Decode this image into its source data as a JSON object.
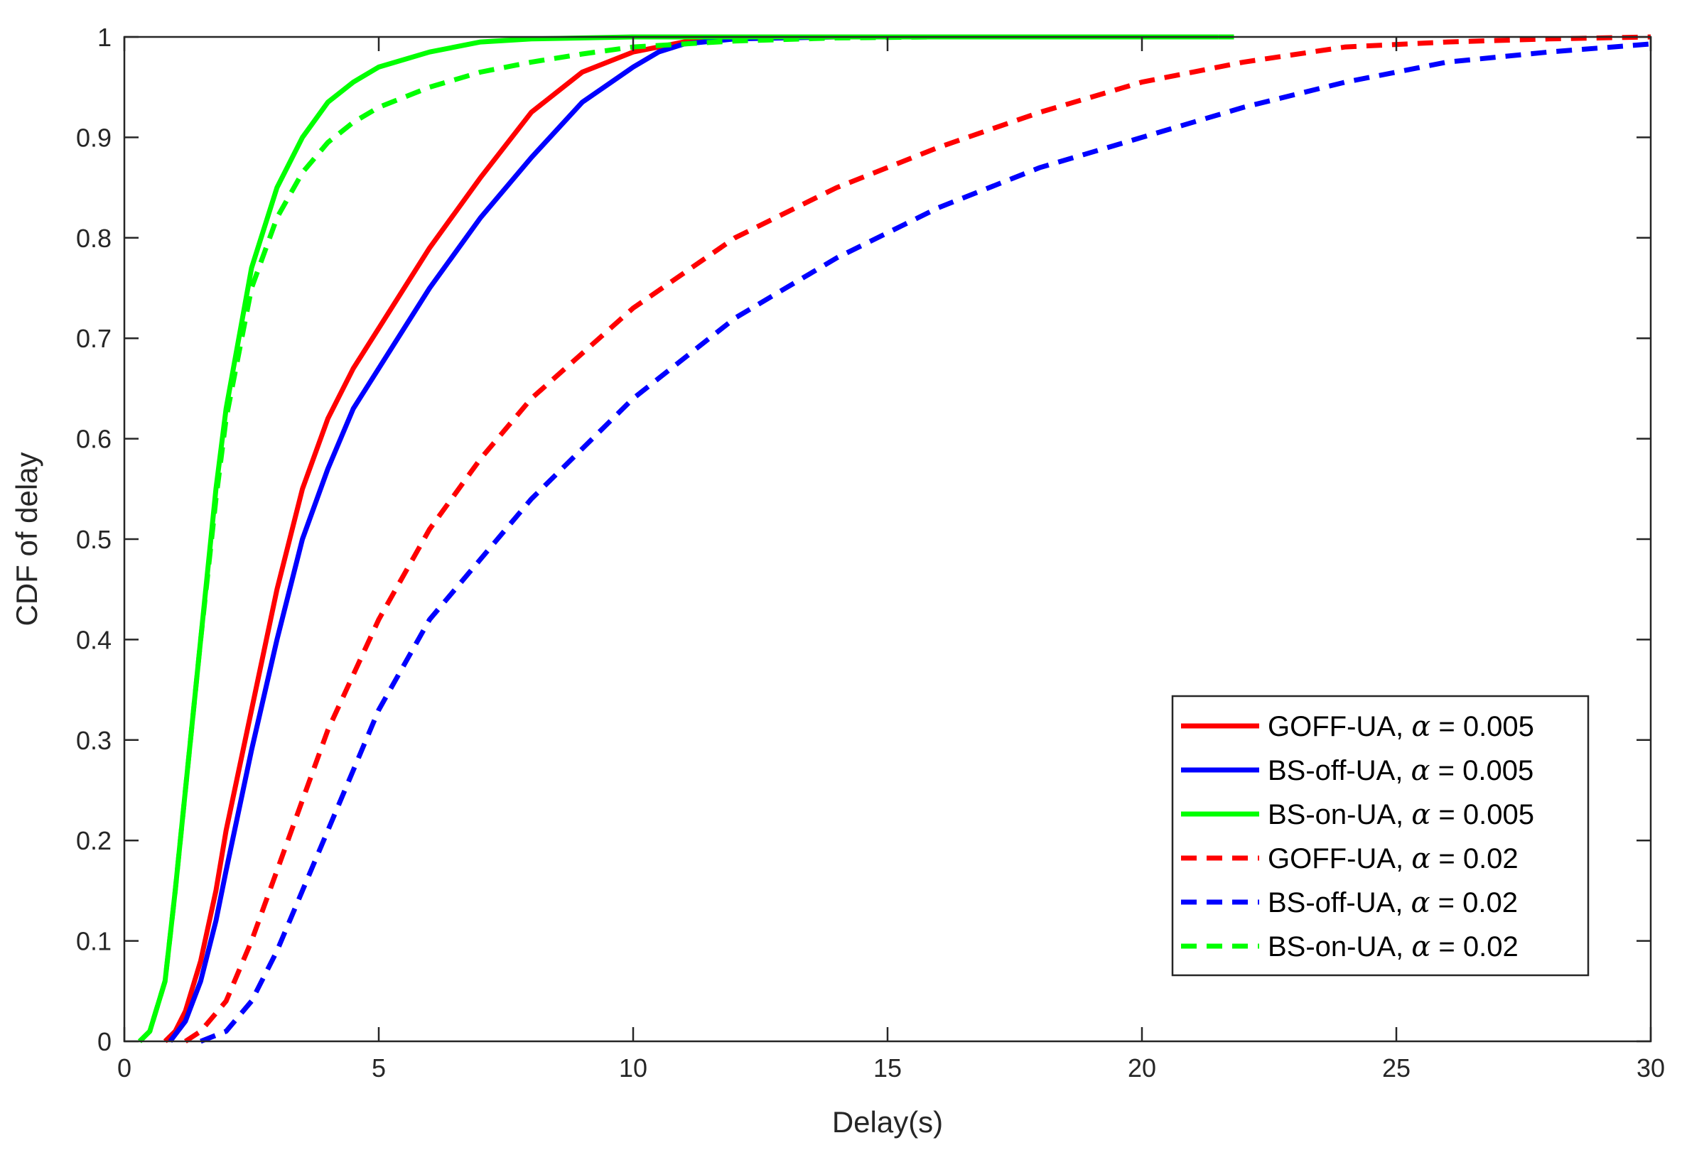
{
  "chart_data": {
    "type": "line",
    "title": "",
    "xlabel": "Delay(s)",
    "ylabel": "CDF of delay",
    "xlim": [
      0,
      30
    ],
    "ylim": [
      0,
      1
    ],
    "xticks": [
      0,
      5,
      10,
      15,
      20,
      25,
      30
    ],
    "xtick_labels": [
      "0",
      "5",
      "10",
      "15",
      "20",
      "25",
      "30"
    ],
    "yticks": [
      0,
      0.1,
      0.2,
      0.3,
      0.4,
      0.5,
      0.6,
      0.7,
      0.8,
      0.9,
      1
    ],
    "ytick_labels": [
      "0",
      "0.1",
      "0.2",
      "0.3",
      "0.4",
      "0.5",
      "0.6",
      "0.7",
      "0.8",
      "0.9",
      "1"
    ],
    "grid": false,
    "legend_position": "bottom-right",
    "alpha_symbol": "α",
    "series": [
      {
        "name": "GOFF-UA, α = 0.005",
        "label_prefix": "GOFF-UA, ",
        "label_suffix": " = 0.005",
        "color": "#ff0000",
        "dashed": false,
        "x": [
          0.8,
          1.0,
          1.2,
          1.5,
          1.8,
          2.0,
          2.5,
          3.0,
          3.5,
          4.0,
          4.5,
          5.0,
          6.0,
          7.0,
          8.0,
          9.0,
          10.0,
          11.0,
          12.0,
          14.0
        ],
        "y": [
          0.0,
          0.01,
          0.03,
          0.08,
          0.15,
          0.21,
          0.33,
          0.45,
          0.55,
          0.62,
          0.67,
          0.71,
          0.79,
          0.86,
          0.925,
          0.965,
          0.985,
          0.995,
          0.999,
          1.0
        ]
      },
      {
        "name": "BS-off-UA, α = 0.005",
        "label_prefix": "BS-off-UA, ",
        "label_suffix": " = 0.005",
        "color": "#0000ff",
        "dashed": false,
        "x": [
          0.9,
          1.2,
          1.5,
          1.8,
          2.0,
          2.5,
          3.0,
          3.5,
          4.0,
          4.5,
          5.0,
          6.0,
          7.0,
          8.0,
          9.0,
          10.0,
          10.5,
          11.0,
          12.0,
          14.0
        ],
        "y": [
          0.0,
          0.02,
          0.06,
          0.12,
          0.17,
          0.29,
          0.4,
          0.5,
          0.57,
          0.63,
          0.67,
          0.75,
          0.82,
          0.88,
          0.935,
          0.97,
          0.985,
          0.993,
          0.998,
          1.0
        ]
      },
      {
        "name": "BS-on-UA, α = 0.005",
        "label_prefix": "BS-on-UA, ",
        "label_suffix": " = 0.005",
        "color": "#00ff00",
        "dashed": false,
        "x": [
          0.3,
          0.5,
          0.8,
          1.0,
          1.2,
          1.5,
          1.8,
          2.0,
          2.5,
          3.0,
          3.5,
          4.0,
          4.5,
          5.0,
          6.0,
          7.0,
          8.0,
          10.0,
          14.0,
          21.5
        ],
        "y": [
          0.0,
          0.01,
          0.06,
          0.15,
          0.25,
          0.4,
          0.55,
          0.63,
          0.77,
          0.85,
          0.9,
          0.935,
          0.955,
          0.97,
          0.985,
          0.995,
          0.998,
          1.0,
          1.0,
          1.0
        ]
      },
      {
        "name": "GOFF-UA, α = 0.02",
        "label_prefix": "GOFF-UA, ",
        "label_suffix": " = 0.02",
        "color": "#ff0000",
        "dashed": true,
        "x": [
          1.2,
          1.5,
          2.0,
          2.5,
          3.0,
          3.5,
          4.0,
          5.0,
          6.0,
          7.0,
          8.0,
          10.0,
          12.0,
          14.0,
          16.0,
          18.0,
          20.0,
          22.0,
          24.0,
          26.0,
          28.0,
          30.0
        ],
        "y": [
          0.0,
          0.01,
          0.04,
          0.1,
          0.17,
          0.24,
          0.31,
          0.42,
          0.51,
          0.58,
          0.64,
          0.73,
          0.8,
          0.85,
          0.89,
          0.925,
          0.955,
          0.975,
          0.99,
          0.995,
          0.998,
          1.0
        ]
      },
      {
        "name": "BS-off-UA, α = 0.02",
        "label_prefix": "BS-off-UA, ",
        "label_suffix": " = 0.02",
        "color": "#0000ff",
        "dashed": true,
        "x": [
          1.5,
          2.0,
          2.5,
          3.0,
          3.5,
          4.0,
          5.0,
          6.0,
          7.0,
          8.0,
          10.0,
          12.0,
          14.0,
          16.0,
          18.0,
          20.0,
          22.0,
          24.0,
          26.0,
          28.0,
          30.0
        ],
        "y": [
          0.0,
          0.01,
          0.04,
          0.09,
          0.15,
          0.21,
          0.33,
          0.42,
          0.48,
          0.54,
          0.64,
          0.72,
          0.78,
          0.83,
          0.87,
          0.9,
          0.93,
          0.955,
          0.975,
          0.985,
          0.993
        ]
      },
      {
        "name": "BS-on-UA, α = 0.02",
        "label_prefix": "BS-on-UA, ",
        "label_suffix": " = 0.02",
        "color": "#00ff00",
        "dashed": true,
        "x": [
          0.3,
          0.5,
          0.8,
          1.0,
          1.2,
          1.5,
          1.8,
          2.0,
          2.5,
          3.0,
          3.5,
          4.0,
          4.5,
          5.0,
          6.0,
          7.0,
          8.0,
          9.0,
          10.0,
          12.0,
          14.0,
          16.0,
          22.0
        ],
        "y": [
          0.0,
          0.01,
          0.06,
          0.15,
          0.25,
          0.4,
          0.54,
          0.62,
          0.75,
          0.82,
          0.865,
          0.895,
          0.915,
          0.93,
          0.95,
          0.965,
          0.975,
          0.983,
          0.99,
          0.996,
          0.999,
          1.0,
          1.0
        ]
      }
    ]
  }
}
